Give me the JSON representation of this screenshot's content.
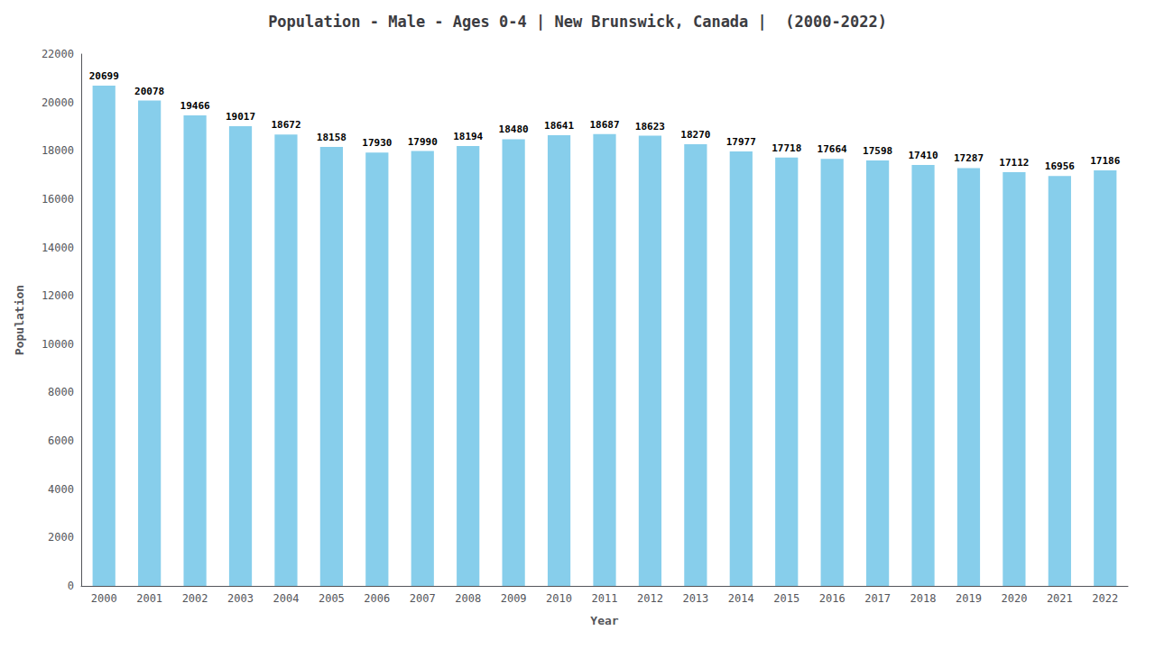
{
  "chart_data": {
    "type": "bar",
    "title": "Population - Male - Ages 0-4 | New Brunswick, Canada |  (2000-2022)",
    "xlabel": "Year",
    "ylabel": "Population",
    "categories": [
      "2000",
      "2001",
      "2002",
      "2003",
      "2004",
      "2005",
      "2006",
      "2007",
      "2008",
      "2009",
      "2010",
      "2011",
      "2012",
      "2013",
      "2014",
      "2015",
      "2016",
      "2017",
      "2018",
      "2019",
      "2020",
      "2021",
      "2022"
    ],
    "values": [
      20699,
      20078,
      19466,
      19017,
      18672,
      18158,
      17930,
      17990,
      18194,
      18480,
      18641,
      18687,
      18623,
      18270,
      17977,
      17718,
      17664,
      17598,
      17410,
      17287,
      17112,
      16956,
      17186
    ],
    "color": "#87CEEB",
    "ylim": [
      0,
      22000
    ],
    "yticks": [
      0,
      2000,
      4000,
      6000,
      8000,
      10000,
      12000,
      14000,
      16000,
      18000,
      20000,
      22000
    ],
    "grid": false,
    "data_labels": true
  }
}
